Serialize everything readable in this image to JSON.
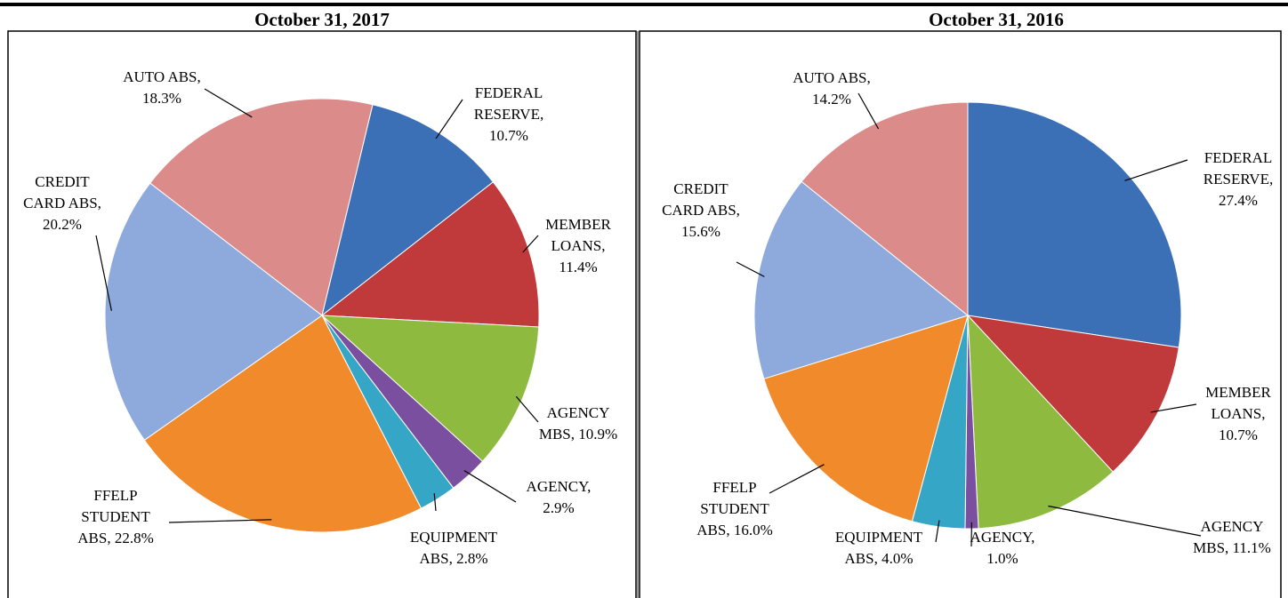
{
  "chart_data": [
    {
      "type": "pie",
      "title": "October 31, 2017",
      "values": [
        10.7,
        11.4,
        10.9,
        2.9,
        2.8,
        22.8,
        20.2,
        18.3
      ],
      "value_labels": [
        [
          "FEDERAL",
          "RESERVE,",
          "10.7%"
        ],
        [
          "MEMBER",
          "LOANS,",
          "11.4%"
        ],
        [
          "AGENCY",
          "MBS, 10.9%"
        ],
        [
          "AGENCY,",
          "2.9%"
        ],
        [
          "EQUIPMENT",
          "ABS, 2.8%"
        ],
        [
          "FFELP",
          "STUDENT",
          "ABS, 22.8%"
        ],
        [
          "CREDIT",
          "CARD ABS,",
          "20.2%"
        ],
        [
          "AUTO ABS,",
          "18.3%"
        ]
      ],
      "colors": [
        "#3b6fb6",
        "#c0393b",
        "#8dba3f",
        "#7b4fa0",
        "#35a6c6",
        "#f08a2a",
        "#8eaadc",
        "#da8b8a"
      ]
    },
    {
      "type": "pie",
      "title": "October 31, 2016",
      "values": [
        27.4,
        10.7,
        11.1,
        1.0,
        4.0,
        16.0,
        15.6,
        14.2
      ],
      "value_labels": [
        [
          "FEDERAL",
          "RESERVE,",
          "27.4%"
        ],
        [
          "MEMBER",
          "LOANS,",
          "10.7%"
        ],
        [
          "AGENCY",
          "MBS, 11.1%"
        ],
        [
          "AGENCY,",
          "1.0%"
        ],
        [
          "EQUIPMENT",
          "ABS, 4.0%"
        ],
        [
          "FFELP",
          "STUDENT",
          "ABS, 16.0%"
        ],
        [
          "CREDIT",
          "CARD ABS,",
          "15.6%"
        ],
        [
          "AUTO ABS,",
          "14.2%"
        ]
      ],
      "colors": [
        "#3b6fb6",
        "#c0393b",
        "#8dba3f",
        "#7b4fa0",
        "#35a6c6",
        "#f08a2a",
        "#8eaadc",
        "#da8b8a"
      ]
    }
  ]
}
